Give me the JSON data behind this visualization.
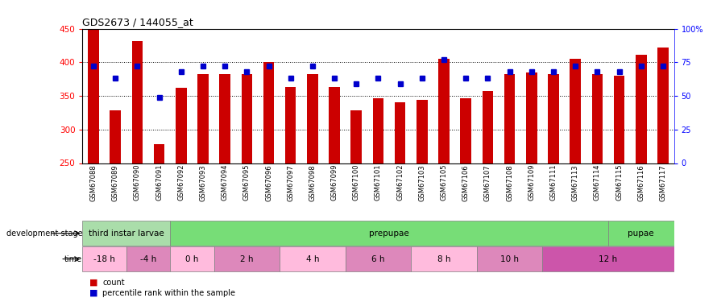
{
  "title": "GDS2673 / 144055_at",
  "samples": [
    "GSM67088",
    "GSM67089",
    "GSM67090",
    "GSM67091",
    "GSM67092",
    "GSM67093",
    "GSM67094",
    "GSM67095",
    "GSM67096",
    "GSM67097",
    "GSM67098",
    "GSM67099",
    "GSM67100",
    "GSM67101",
    "GSM67102",
    "GSM67103",
    "GSM67105",
    "GSM67106",
    "GSM67107",
    "GSM67108",
    "GSM67109",
    "GSM67111",
    "GSM67113",
    "GSM67114",
    "GSM67115",
    "GSM67116",
    "GSM67117"
  ],
  "counts": [
    448,
    329,
    432,
    278,
    362,
    383,
    383,
    383,
    400,
    363,
    383,
    363,
    329,
    347,
    340,
    344,
    405,
    346,
    357,
    383,
    385,
    383,
    405,
    383,
    380,
    411,
    422
  ],
  "percentile_ranks": [
    72,
    63,
    72,
    49,
    68,
    72,
    72,
    68,
    72,
    63,
    72,
    63,
    59,
    63,
    59,
    63,
    77,
    63,
    63,
    68,
    68,
    68,
    72,
    68,
    68,
    72,
    72
  ],
  "ylim_left": [
    250,
    450
  ],
  "ylim_right": [
    0,
    100
  ],
  "bar_color": "#cc0000",
  "dot_color": "#0000cc",
  "dev_stages": [
    {
      "name": "third instar larvae",
      "start": 0,
      "end": 4,
      "color": "#aaddaa"
    },
    {
      "name": "prepupae",
      "start": 4,
      "end": 24,
      "color": "#77dd77"
    },
    {
      "name": "pupae",
      "start": 24,
      "end": 27,
      "color": "#77dd77"
    }
  ],
  "time_blocks": [
    {
      "name": "-18 h",
      "start": 0,
      "end": 2,
      "color": "#ffbbdd"
    },
    {
      "name": "-4 h",
      "start": 2,
      "end": 4,
      "color": "#dd88bb"
    },
    {
      "name": "0 h",
      "start": 4,
      "end": 6,
      "color": "#ffbbdd"
    },
    {
      "name": "2 h",
      "start": 6,
      "end": 9,
      "color": "#dd88bb"
    },
    {
      "name": "4 h",
      "start": 9,
      "end": 12,
      "color": "#ffbbdd"
    },
    {
      "name": "6 h",
      "start": 12,
      "end": 15,
      "color": "#dd88bb"
    },
    {
      "name": "8 h",
      "start": 15,
      "end": 18,
      "color": "#ffbbdd"
    },
    {
      "name": "10 h",
      "start": 18,
      "end": 21,
      "color": "#dd88bb"
    },
    {
      "name": "12 h",
      "start": 21,
      "end": 27,
      "color": "#cc55aa"
    }
  ]
}
